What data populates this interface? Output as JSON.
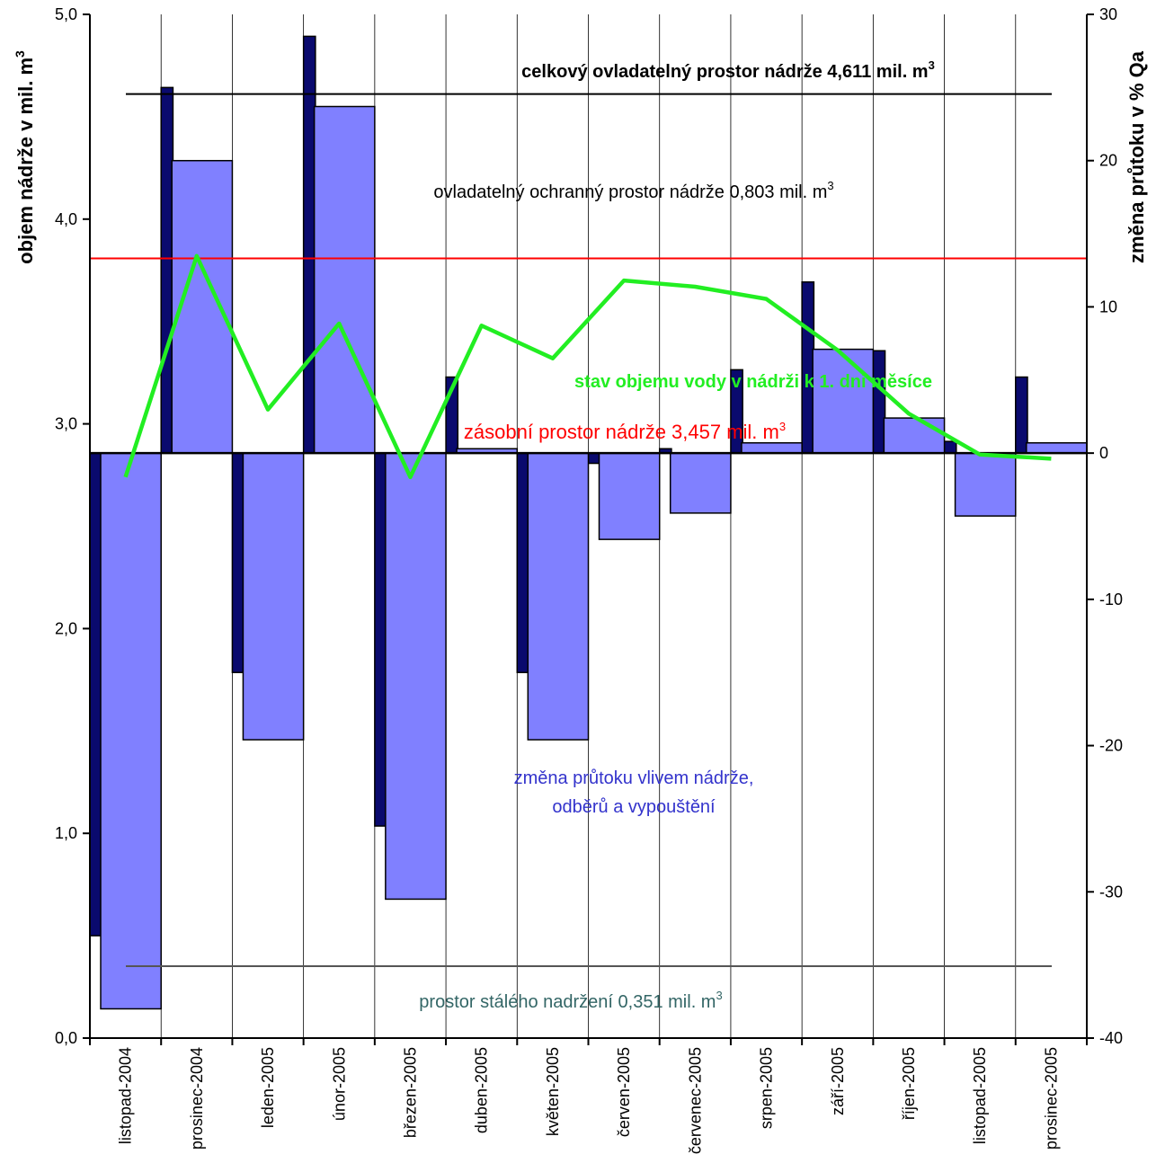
{
  "chart_data": {
    "type": "bar",
    "categories": [
      "listopad-2004",
      "prosinec-2004",
      "leden-2005",
      "únor-2005",
      "březen-2005",
      "duben-2005",
      "květen-2005",
      "červen-2005",
      "červenec-2005",
      "srpen-2005",
      "září-2005",
      "říjen-2005",
      "listopad-2005",
      "prosinec-2005"
    ],
    "y_left": {
      "label": "objem nádrže  v mil. m",
      "label_sup": "3",
      "range": [
        0,
        5
      ],
      "ticks": [
        "0,0",
        "1,0",
        "2,0",
        "3,0",
        "4,0",
        "5,0"
      ]
    },
    "y_right": {
      "label": "změna průtoku v % Qa",
      "range": [
        -40,
        30
      ],
      "ticks": [
        "-40",
        "-30",
        "-20",
        "-10",
        "0",
        "10",
        "20",
        "30"
      ]
    },
    "series": [
      {
        "kind": "bar",
        "color": "#0a0a6e",
        "values": [
          -33.0,
          25.0,
          -15.0,
          28.5,
          -25.5,
          5.2,
          -15.0,
          -0.7,
          0.3,
          5.7,
          11.7,
          7.0,
          0.8,
          5.2
        ]
      },
      {
        "kind": "bar",
        "color": "#8080ff",
        "values": [
          -38.0,
          20.0,
          -19.6,
          23.7,
          -30.5,
          0.3,
          -19.6,
          -5.9,
          -4.1,
          0.7,
          7.1,
          2.4,
          -4.3,
          0.7
        ]
      },
      {
        "name": "stav objemu vody v  nádrži k 1. dni měsíce",
        "kind": "line",
        "color": "#22ee22",
        "values": [
          2.74,
          3.82,
          3.07,
          3.49,
          2.74,
          3.48,
          3.32,
          3.7,
          3.67,
          3.61,
          3.36,
          3.05,
          2.85,
          2.83
        ]
      }
    ],
    "reference_lines": [
      {
        "label": "celkový ovladatelný prostor nádrže 4,611 mil. m",
        "sup": "3",
        "value": 4.611,
        "color": "#000000",
        "label_color": "#000000",
        "bold": true
      },
      {
        "label": "ovladatelný ochranný  prostor nádrže 0,803 mil. m",
        "sup": "3",
        "value": 3.808,
        "color": "#ff0000",
        "label_color": "#000000",
        "bold": false
      },
      {
        "label": "zásobní prostor nádrže 3,457 mil. m",
        "sup": "3",
        "value": 2.857,
        "color": "#000000",
        "label_color": "#ff0000",
        "bold": false
      },
      {
        "label": "prostor stálého nadržení 0,351 mil. m",
        "sup": "3",
        "value": 0.351,
        "color": "#555555",
        "label_color": "#336666",
        "bold": false
      }
    ],
    "annotations": [
      {
        "text": "změna průtoku vlivem nádrže,",
        "color": "#3333cc"
      },
      {
        "text": "odběrů a vypouštění",
        "color": "#3333cc"
      }
    ],
    "grid": "vertical"
  }
}
